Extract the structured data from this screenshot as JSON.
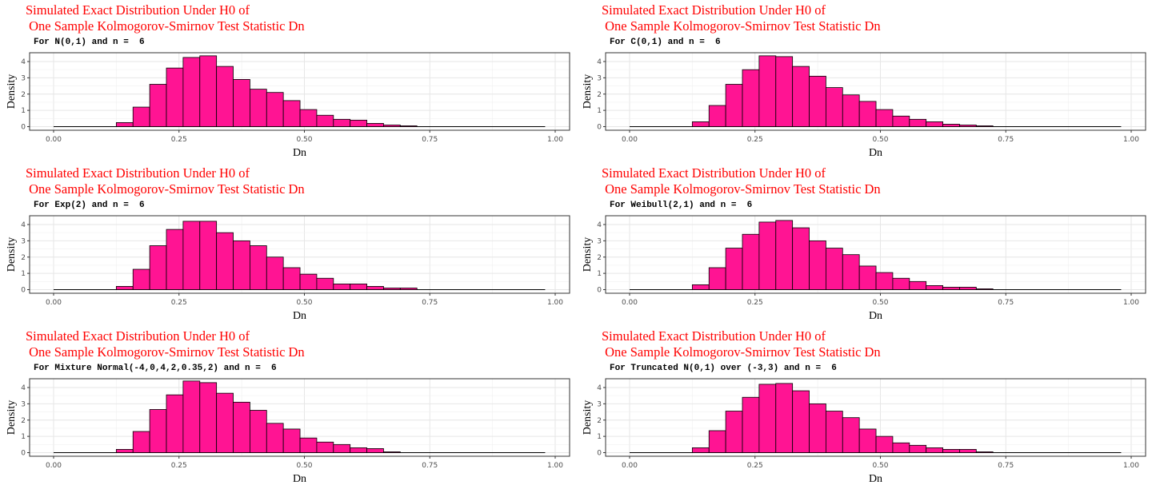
{
  "chart_data": [
    {
      "type": "bar",
      "title_line1": "Simulated Exact Distribution Under H0 of",
      "title_line2": " One Sample Kolmogorov-Smirnov Test Statistic Dn",
      "subtitle": "For N(0,1) and n =  6",
      "xlabel": "Dn",
      "ylabel": "Density",
      "xlim": [
        0,
        1
      ],
      "ylim": [
        0,
        4
      ],
      "xticks": [
        "0.00",
        "0.25",
        "0.50",
        "0.75",
        "1.00"
      ],
      "yticks": [
        "0",
        "1",
        "2",
        "3",
        "4"
      ],
      "bin_start": 0.125,
      "bin_width": 0.0333,
      "values": [
        0.25,
        1.2,
        2.6,
        3.6,
        4.25,
        4.35,
        3.7,
        2.9,
        2.3,
        2.1,
        1.6,
        1.05,
        0.7,
        0.45,
        0.4,
        0.2,
        0.1,
        0.05
      ],
      "fill": "#ff1493",
      "grid": true
    },
    {
      "type": "bar",
      "title_line1": "Simulated Exact Distribution Under H0 of",
      "title_line2": " One Sample Kolmogorov-Smirnov Test Statistic Dn",
      "subtitle": "For C(0,1) and n =  6",
      "xlabel": "Dn",
      "ylabel": "Density",
      "xlim": [
        0,
        1
      ],
      "ylim": [
        0,
        4
      ],
      "xticks": [
        "0.00",
        "0.25",
        "0.50",
        "0.75",
        "1.00"
      ],
      "yticks": [
        "0",
        "1",
        "2",
        "3",
        "4"
      ],
      "bin_start": 0.125,
      "bin_width": 0.0333,
      "values": [
        0.3,
        1.3,
        2.6,
        3.5,
        4.35,
        4.3,
        3.7,
        3.1,
        2.4,
        1.95,
        1.55,
        1.05,
        0.65,
        0.45,
        0.3,
        0.15,
        0.1,
        0.05
      ],
      "fill": "#ff1493",
      "grid": true
    },
    {
      "type": "bar",
      "title_line1": "Simulated Exact Distribution Under H0 of",
      "title_line2": " One Sample Kolmogorov-Smirnov Test Statistic Dn",
      "subtitle": "For Exp(2) and n =  6",
      "xlabel": "Dn",
      "ylabel": "Density",
      "xlim": [
        0,
        1
      ],
      "ylim": [
        0,
        4
      ],
      "xticks": [
        "0.00",
        "0.25",
        "0.50",
        "0.75",
        "1.00"
      ],
      "yticks": [
        "0",
        "1",
        "2",
        "3",
        "4"
      ],
      "bin_start": 0.125,
      "bin_width": 0.0333,
      "values": [
        0.2,
        1.25,
        2.7,
        3.7,
        4.2,
        4.2,
        3.5,
        3.0,
        2.7,
        2.0,
        1.35,
        0.95,
        0.7,
        0.35,
        0.35,
        0.2,
        0.1,
        0.1
      ],
      "fill": "#ff1493",
      "grid": true
    },
    {
      "type": "bar",
      "title_line1": "Simulated Exact Distribution Under H0 of",
      "title_line2": " One Sample Kolmogorov-Smirnov Test Statistic Dn",
      "subtitle": "For Weibull(2,1) and n =  6",
      "xlabel": "Dn",
      "ylabel": "Density",
      "xlim": [
        0,
        1
      ],
      "ylim": [
        0,
        4
      ],
      "xticks": [
        "0.00",
        "0.25",
        "0.50",
        "0.75",
        "1.00"
      ],
      "yticks": [
        "0",
        "1",
        "2",
        "3",
        "4"
      ],
      "bin_start": 0.125,
      "bin_width": 0.0333,
      "values": [
        0.3,
        1.35,
        2.55,
        3.4,
        4.15,
        4.25,
        3.8,
        3.0,
        2.55,
        2.15,
        1.45,
        1.05,
        0.7,
        0.5,
        0.25,
        0.15,
        0.15,
        0.05
      ],
      "fill": "#ff1493",
      "grid": true
    },
    {
      "type": "bar",
      "title_line1": "Simulated Exact Distribution Under H0 of",
      "title_line2": " One Sample Kolmogorov-Smirnov Test Statistic Dn",
      "subtitle": "For Mixture Normal(-4,0,4,2,0.35,2) and n =  6",
      "xlabel": "Dn",
      "ylabel": "Density",
      "xlim": [
        0,
        1
      ],
      "ylim": [
        0,
        4
      ],
      "xticks": [
        "0.00",
        "0.25",
        "0.50",
        "0.75",
        "1.00"
      ],
      "yticks": [
        "0",
        "1",
        "2",
        "3",
        "4"
      ],
      "bin_start": 0.125,
      "bin_width": 0.0333,
      "values": [
        0.2,
        1.3,
        2.65,
        3.55,
        4.4,
        4.3,
        3.65,
        3.1,
        2.6,
        1.8,
        1.45,
        0.9,
        0.65,
        0.5,
        0.3,
        0.25,
        0.05
      ],
      "fill": "#ff1493",
      "grid": true
    },
    {
      "type": "bar",
      "title_line1": "Simulated Exact Distribution Under H0 of",
      "title_line2": " One Sample Kolmogorov-Smirnov Test Statistic Dn",
      "subtitle": "For Truncated N(0,1) over (-3,3) and n =  6",
      "xlabel": "Dn",
      "ylabel": "Density",
      "xlim": [
        0,
        1
      ],
      "ylim": [
        0,
        4
      ],
      "xticks": [
        "0.00",
        "0.25",
        "0.50",
        "0.75",
        "1.00"
      ],
      "yticks": [
        "0",
        "1",
        "2",
        "3",
        "4"
      ],
      "bin_start": 0.125,
      "bin_width": 0.0333,
      "values": [
        0.3,
        1.35,
        2.55,
        3.4,
        4.2,
        4.25,
        3.8,
        3.0,
        2.55,
        2.15,
        1.45,
        1.0,
        0.6,
        0.45,
        0.3,
        0.2,
        0.2,
        0.05
      ],
      "fill": "#ff1493",
      "grid": true
    }
  ]
}
